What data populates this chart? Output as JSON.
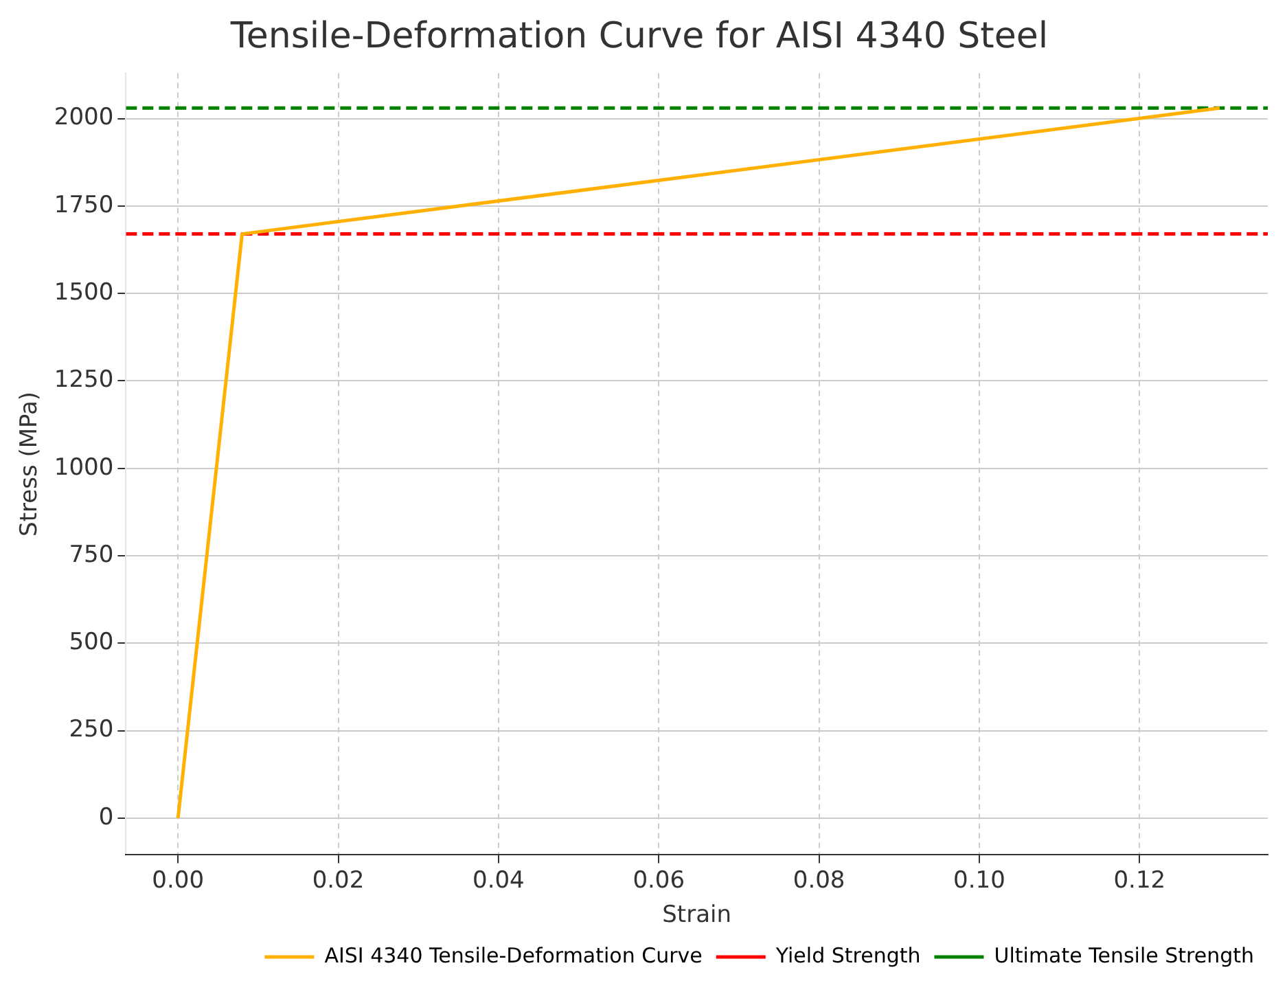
{
  "chart_data": {
    "type": "line",
    "title": "Tensile-Deformation Curve for AISI 4340 Steel",
    "xlabel": "Strain",
    "ylabel": "Stress (MPa)",
    "series": [
      {
        "name": "AISI 4340 Tensile-Deformation Curve",
        "color": "#ffb000",
        "x": [
          0,
          0.008,
          0.13
        ],
        "values": [
          0,
          1670,
          2030
        ]
      }
    ],
    "ref_lines": [
      {
        "axis": "y",
        "value": 1670,
        "label": "Yield Strength",
        "color": "#ff0000",
        "line_style": "dashed"
      },
      {
        "axis": "y",
        "value": 2030,
        "label": "Ultimate Tensile Strength",
        "color": "#008000",
        "line_style": "dashed"
      }
    ],
    "xlim": [
      -0.0065,
      0.136
    ],
    "xticks": [
      {
        "value": 0,
        "label": "0.00"
      },
      {
        "value": 0.02,
        "label": "0.02"
      },
      {
        "value": 0.04,
        "label": "0.04"
      },
      {
        "value": 0.06,
        "label": "0.06"
      },
      {
        "value": 0.08,
        "label": "0.08"
      },
      {
        "value": 0.1,
        "label": "0.10"
      },
      {
        "value": 0.12,
        "label": "0.12"
      }
    ],
    "ylim": [
      -105,
      2130
    ],
    "yticks": [
      0,
      250,
      500,
      750,
      1000,
      1250,
      1500,
      1750,
      2000
    ],
    "grid": true,
    "legend": "bottom right"
  }
}
